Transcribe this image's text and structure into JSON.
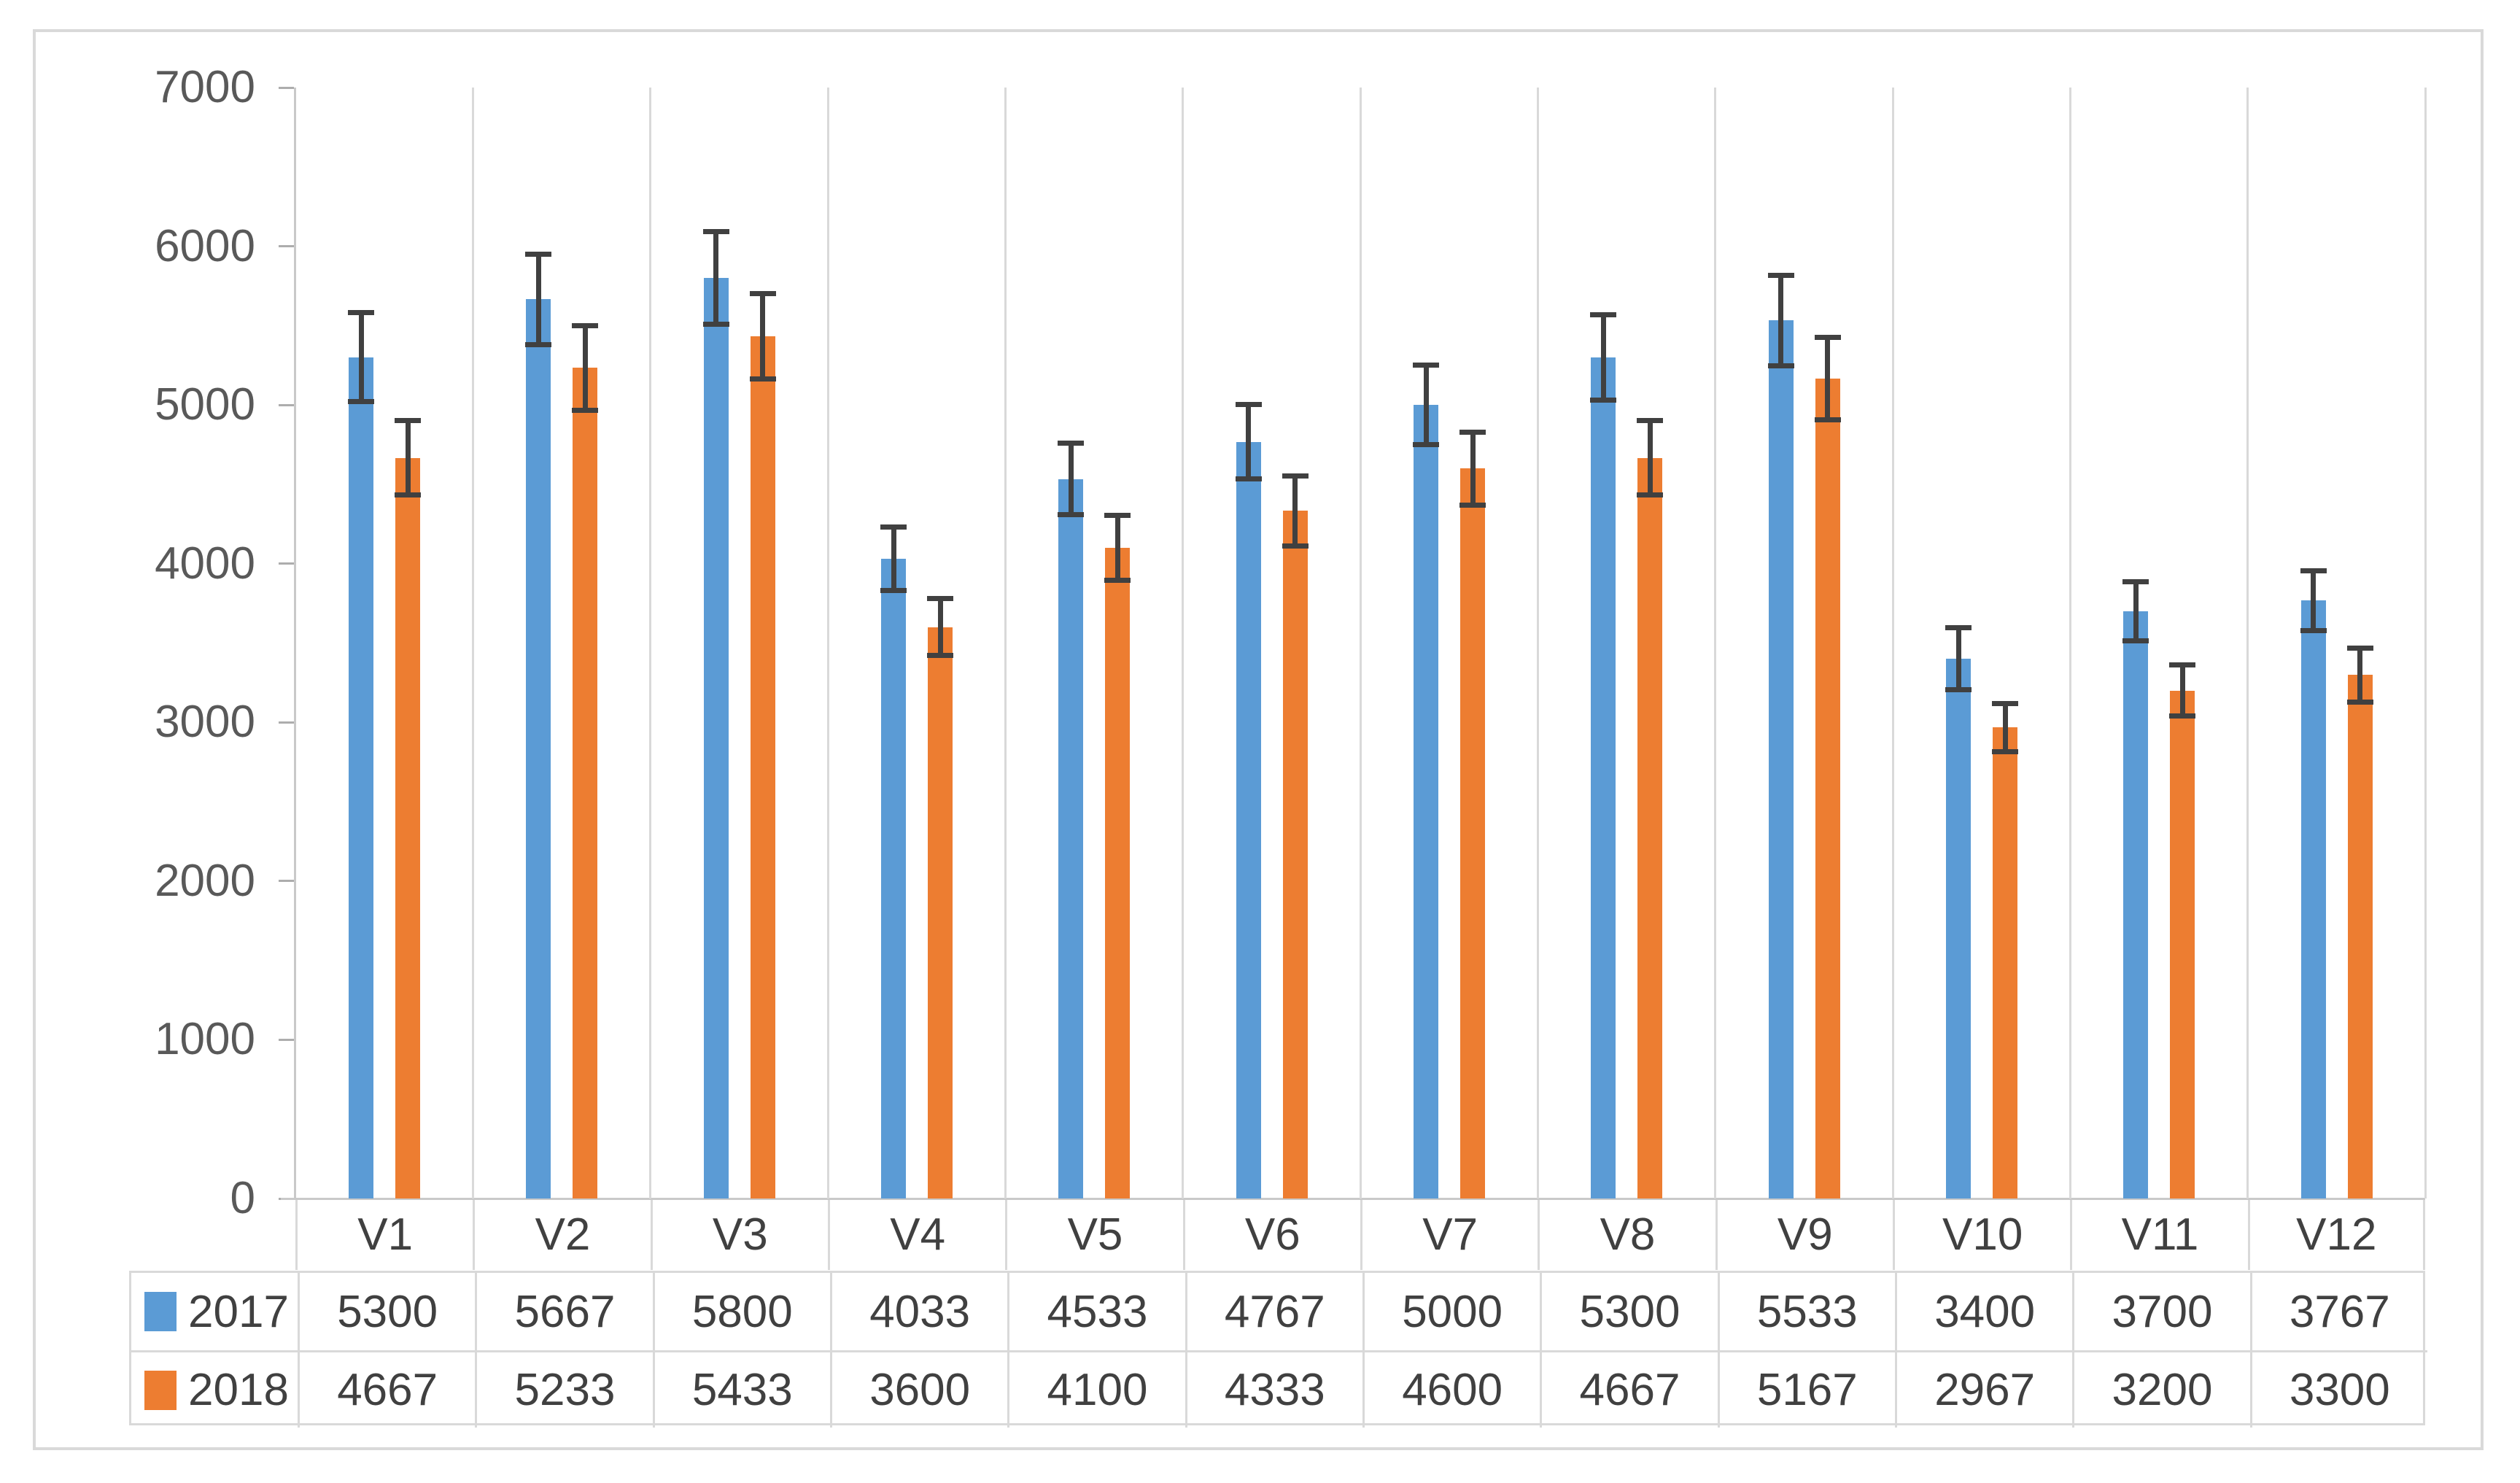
{
  "chart_data": {
    "type": "bar",
    "title": "",
    "xlabel": "",
    "ylabel": "",
    "categories": [
      "V1",
      "V2",
      "V3",
      "V4",
      "V5",
      "V6",
      "V7",
      "V8",
      "V9",
      "V10",
      "V11",
      "V12"
    ],
    "series": [
      {
        "name": "2017",
        "color": "#5B9BD5",
        "values": [
          5300,
          5667,
          5800,
          4033,
          4533,
          4767,
          5000,
          5300,
          5533,
          3400,
          3700,
          3767
        ],
        "errors": [
          280,
          285,
          290,
          200,
          225,
          235,
          250,
          270,
          285,
          195,
          185,
          190
        ]
      },
      {
        "name": "2018",
        "color": "#ED7D31",
        "values": [
          4667,
          5233,
          5433,
          3600,
          4100,
          4333,
          4600,
          4667,
          5167,
          2967,
          3200,
          3300
        ],
        "errors": [
          235,
          265,
          270,
          180,
          205,
          220,
          230,
          235,
          260,
          150,
          160,
          170
        ]
      }
    ],
    "ylim": [
      0,
      7000
    ],
    "yticks": [
      0,
      1000,
      2000,
      3000,
      4000,
      5000,
      6000,
      7000
    ],
    "grid": "vertical-category-separators-only",
    "legend_position": "data-table-row-headers",
    "has_data_table": true,
    "error_bars": "both-directions-with-caps",
    "colors": {
      "error_bar": "#404040",
      "gridline": "#D9D9D9",
      "axis_line": "#C9C9C9",
      "tick_mark": "#ADADAD",
      "axis_text": "#595959",
      "table_text": "#404040",
      "frame_border": "#D9D9D9",
      "background": "#FFFFFF"
    }
  }
}
